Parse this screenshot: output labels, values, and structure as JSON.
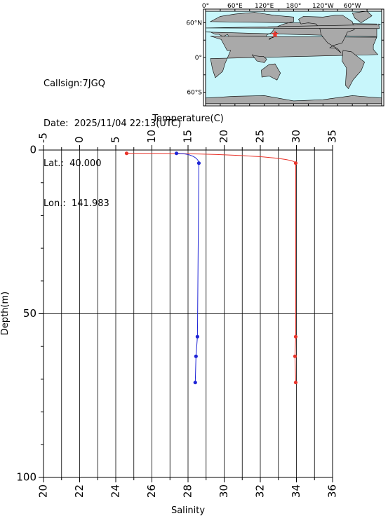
{
  "info": {
    "callsign_label": "Callsign:",
    "callsign": "7JGQ",
    "date_label": "Date:",
    "date": "2025/11/04 22:13(UTC)",
    "lat_label": "Lat.:",
    "lat": "40.000",
    "lon_label": "Lon.:",
    "lon": "141.983"
  },
  "map": {
    "top_ticks": [
      "0°",
      "60°E",
      "120°E",
      "180°",
      "120°W",
      "60°W"
    ],
    "left_ticks": [
      "60°N",
      "0°",
      "60°S"
    ],
    "ocean_color": "#c8f6fb",
    "land_color": "#a9a9a9",
    "marker": "star-icon",
    "marker_color": "#e8332a",
    "marker_lon": 141.983,
    "marker_lat": 40.0
  },
  "colors": {
    "temperature": "#e8332a",
    "salinity": "#1f25d6"
  },
  "chart_data": {
    "type": "line",
    "title": "",
    "top_axis": {
      "label": "Temperature(C)",
      "range": [
        -5,
        35
      ],
      "ticks": [
        -5,
        0,
        5,
        10,
        15,
        20,
        25,
        30,
        35
      ],
      "minor_step": 2.5
    },
    "bottom_axis": {
      "label": "Salinity",
      "range": [
        20,
        36
      ],
      "ticks": [
        20,
        22,
        24,
        26,
        28,
        30,
        32,
        34,
        36
      ]
    },
    "y_axis": {
      "label": "Depth(m)",
      "range": [
        0,
        100
      ],
      "inverted": true,
      "ticks": [
        0,
        50,
        100
      ],
      "minor_step": 10
    },
    "grid": true,
    "series": [
      {
        "axis": "top",
        "color": "#e8332a",
        "depth": [
          1,
          4,
          57,
          63,
          71
        ],
        "values": [
          6.5,
          29.9,
          29.9,
          29.8,
          29.9
        ]
      },
      {
        "axis": "top",
        "color": "#1f25d6",
        "depth": [
          1,
          4,
          57,
          63,
          71
        ],
        "values": [
          13.4,
          16.5,
          16.3,
          16.1,
          16.0
        ]
      }
    ]
  }
}
